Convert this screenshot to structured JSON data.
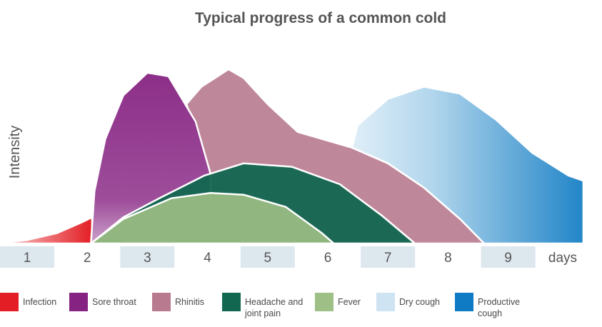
{
  "chart_data": {
    "type": "area",
    "title": "Typical progress of a common cold",
    "xlabel": "days",
    "ylabel": "Intensity",
    "x_ticks": [
      "1",
      "2",
      "3",
      "4",
      "5",
      "6",
      "7",
      "8",
      "9"
    ],
    "xlim": [
      0.5,
      10.2
    ],
    "ylim": [
      0,
      10
    ],
    "series": [
      {
        "name": "Infection",
        "color": "#e31e24",
        "points": [
          [
            0.5,
            0
          ],
          [
            1.0,
            0.2
          ],
          [
            1.5,
            0.6
          ],
          [
            1.9,
            1.2
          ],
          [
            2.08,
            1.5
          ],
          [
            2.08,
            0
          ]
        ]
      },
      {
        "name": "Sore throat",
        "color": "#862382",
        "points": [
          [
            2.06,
            0
          ],
          [
            2.12,
            3.0
          ],
          [
            2.3,
            6.0
          ],
          [
            2.6,
            8.5
          ],
          [
            3.0,
            9.8
          ],
          [
            3.35,
            9.6
          ],
          [
            3.8,
            7.0
          ],
          [
            4.05,
            4.0
          ],
          [
            4.05,
            0
          ]
        ]
      },
      {
        "name": "Rhinitis",
        "color": "#b87a8f",
        "points": [
          [
            3.65,
            8.0
          ],
          [
            3.9,
            9.0
          ],
          [
            4.35,
            10.0
          ],
          [
            4.6,
            9.5
          ],
          [
            5.0,
            8.0
          ],
          [
            5.5,
            6.4
          ],
          [
            6.4,
            5.5
          ],
          [
            7.0,
            4.6
          ],
          [
            7.6,
            3.2
          ],
          [
            8.2,
            1.4
          ],
          [
            8.6,
            0
          ],
          [
            4.05,
            0
          ],
          [
            4.05,
            4.0
          ]
        ]
      },
      {
        "name": "Headache and joint pain",
        "color": "#126750",
        "points": [
          [
            2.06,
            0
          ],
          [
            2.6,
            1.5
          ],
          [
            3.2,
            2.6
          ],
          [
            3.95,
            3.9
          ],
          [
            4.6,
            4.6
          ],
          [
            5.4,
            4.4
          ],
          [
            6.2,
            3.4
          ],
          [
            6.9,
            1.6
          ],
          [
            7.45,
            0
          ]
        ]
      },
      {
        "name": "Fever",
        "color": "#9ebf85",
        "points": [
          [
            2.06,
            0
          ],
          [
            2.6,
            1.4
          ],
          [
            3.4,
            2.6
          ],
          [
            4.05,
            2.9
          ],
          [
            4.6,
            2.8
          ],
          [
            5.3,
            2.1
          ],
          [
            5.9,
            0.6
          ],
          [
            6.1,
            0
          ]
        ]
      },
      {
        "name": "Dry cough",
        "color": "#cfe4f2",
        "points": [
          [
            6.5,
            6.8
          ],
          [
            7.0,
            8.3
          ],
          [
            7.6,
            9.0
          ],
          [
            8.2,
            8.6
          ],
          [
            8.8,
            7.1
          ],
          [
            9.4,
            5.2
          ],
          [
            10.0,
            3.9
          ],
          [
            10.25,
            3.6
          ],
          [
            10.25,
            0
          ],
          [
            8.6,
            0
          ],
          [
            8.2,
            1.4
          ],
          [
            7.6,
            3.2
          ],
          [
            7.0,
            4.6
          ],
          [
            6.4,
            5.5
          ]
        ]
      },
      {
        "name": "Productive cough",
        "color": "#0e7bc4",
        "points": []
      }
    ]
  },
  "legend": [
    {
      "label": "Infection",
      "color": "#e31e24"
    },
    {
      "label": "Sore throat",
      "color": "#862382"
    },
    {
      "label": "Rhinitis",
      "color": "#b87a8f"
    },
    {
      "label": "Headache and joint pain",
      "color": "#126750"
    },
    {
      "label": "Fever",
      "color": "#9ebf85"
    },
    {
      "label": "Dry cough",
      "color": "#cfe4f2"
    },
    {
      "label": "Productive cough",
      "color": "#0e7bc4"
    }
  ]
}
